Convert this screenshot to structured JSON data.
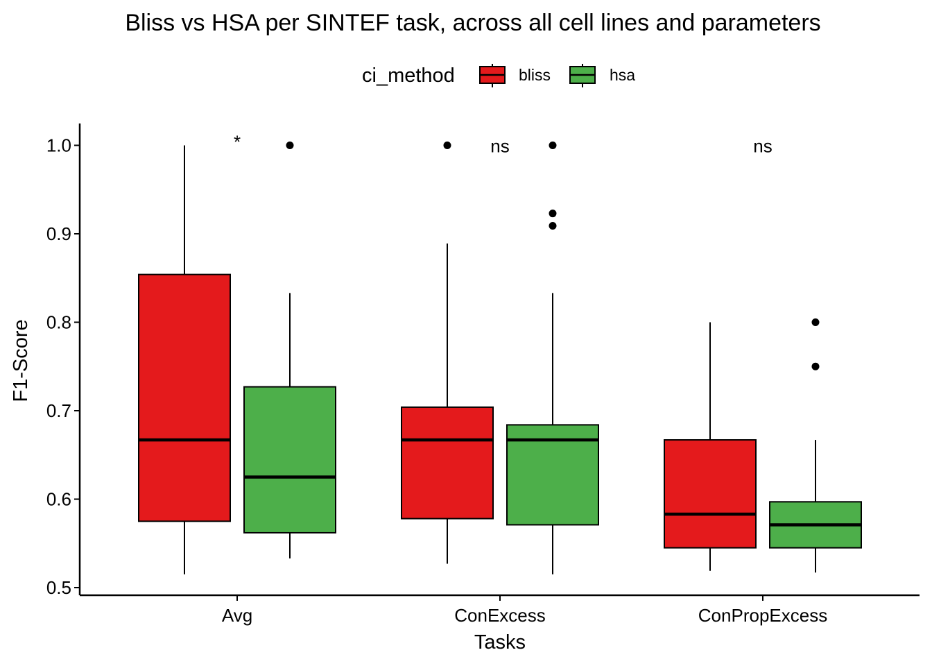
{
  "chart_data": {
    "type": "boxplot",
    "title": "Bliss vs HSA per SINTEF task, across all cell lines and parameters",
    "xlabel": "Tasks",
    "ylabel": "F1-Score",
    "ylim": [
      0.49,
      1.025
    ],
    "yticks": [
      "0.5",
      "0.6",
      "0.7",
      "0.8",
      "0.9",
      "1.0"
    ],
    "ytick_values": [
      0.5,
      0.6,
      0.7,
      0.8,
      0.9,
      1.0
    ],
    "categories": [
      "Avg",
      "ConExcess",
      "ConPropExcess"
    ],
    "legend": {
      "title": "ci_method",
      "position": "top",
      "entries": [
        {
          "name": "bliss",
          "color": "#E41A1C"
        },
        {
          "name": "hsa",
          "color": "#4DAF4A"
        }
      ]
    },
    "series": [
      {
        "name": "bliss",
        "color": "#E41A1C",
        "boxes": [
          {
            "category": "Avg",
            "min": 0.515,
            "q1": 0.575,
            "median": 0.667,
            "q3": 0.854,
            "max": 1.0,
            "outliers": []
          },
          {
            "category": "ConExcess",
            "min": 0.527,
            "q1": 0.578,
            "median": 0.667,
            "q3": 0.704,
            "max": 0.889,
            "outliers": [
              1.0
            ]
          },
          {
            "category": "ConPropExcess",
            "min": 0.519,
            "q1": 0.545,
            "median": 0.583,
            "q3": 0.667,
            "max": 0.8,
            "outliers": []
          }
        ]
      },
      {
        "name": "hsa",
        "color": "#4DAF4A",
        "boxes": [
          {
            "category": "Avg",
            "min": 0.533,
            "q1": 0.562,
            "median": 0.625,
            "q3": 0.727,
            "max": 0.833,
            "outliers": [
              1.0
            ]
          },
          {
            "category": "ConExcess",
            "min": 0.515,
            "q1": 0.571,
            "median": 0.667,
            "q3": 0.684,
            "max": 0.833,
            "outliers": [
              0.909,
              0.923,
              1.0
            ]
          },
          {
            "category": "ConPropExcess",
            "min": 0.517,
            "q1": 0.545,
            "median": 0.571,
            "q3": 0.597,
            "max": 0.667,
            "outliers": [
              0.75,
              0.8
            ]
          }
        ]
      }
    ],
    "annotations": [
      {
        "category": "Avg",
        "text": "*",
        "y": 1.0
      },
      {
        "category": "ConExcess",
        "text": "ns",
        "y": 1.0
      },
      {
        "category": "ConPropExcess",
        "text": "ns",
        "y": 1.0
      }
    ]
  }
}
